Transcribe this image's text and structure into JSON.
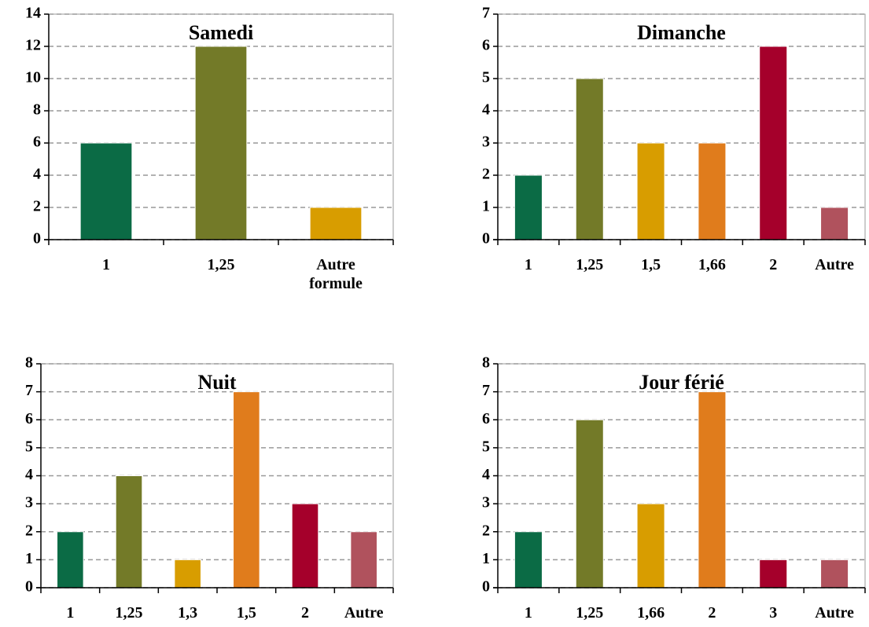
{
  "chart_data": [
    {
      "type": "bar",
      "title": "Samedi",
      "categories": [
        "1",
        "1,25",
        "Autre formule"
      ],
      "values": [
        6,
        12,
        2
      ],
      "colors": [
        "#0b6b45",
        "#737a28",
        "#d89d00"
      ],
      "ylim": [
        0,
        14
      ],
      "yticks": [
        0,
        2,
        4,
        6,
        8,
        10,
        12,
        14
      ],
      "grid": true
    },
    {
      "type": "bar",
      "title": "Dimanche",
      "categories": [
        "1",
        "1,25",
        "1,5",
        "1,66",
        "2",
        "Autre"
      ],
      "values": [
        2,
        5,
        3,
        3,
        6,
        1
      ],
      "colors": [
        "#0b6b45",
        "#737a28",
        "#d89d00",
        "#e07c1c",
        "#a5002b",
        "#b0525d"
      ],
      "ylim": [
        0,
        7
      ],
      "yticks": [
        0,
        1,
        2,
        3,
        4,
        5,
        6,
        7
      ],
      "grid": true
    },
    {
      "type": "bar",
      "title": "Nuit",
      "categories": [
        "1",
        "1,25",
        "1,3",
        "1,5",
        "2",
        "Autre"
      ],
      "values": [
        2,
        4,
        1,
        7,
        3,
        2
      ],
      "colors": [
        "#0b6b45",
        "#737a28",
        "#d89d00",
        "#e07c1c",
        "#a5002b",
        "#b0525d"
      ],
      "ylim": [
        0,
        8
      ],
      "yticks": [
        0,
        1,
        2,
        3,
        4,
        5,
        6,
        7,
        8
      ],
      "grid": true
    },
    {
      "type": "bar",
      "title": "Jour férié",
      "categories": [
        "1",
        "1,25",
        "1,66",
        "2",
        "3",
        "Autre"
      ],
      "values": [
        2,
        6,
        3,
        7,
        1,
        1
      ],
      "colors": [
        "#0b6b45",
        "#737a28",
        "#d89d00",
        "#e07c1c",
        "#a5002b",
        "#b0525d"
      ],
      "ylim": [
        0,
        8
      ],
      "yticks": [
        0,
        1,
        2,
        3,
        4,
        5,
        6,
        7,
        8
      ],
      "grid": true
    }
  ]
}
